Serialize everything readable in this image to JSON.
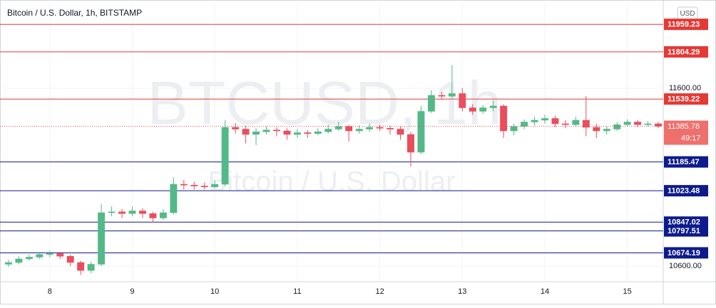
{
  "chart_data": {
    "type": "candlestick",
    "title": "Bitcoin / U.S. Dollar, 1h, BITSTAMP",
    "watermark": "BTCUSD, 1h",
    "watermark_subtitle": "Bitcoin / U.S. Dollar",
    "currency": "USD",
    "countdown": "49:17",
    "up_color": "#53b987",
    "down_color": "#eb4d5c",
    "x": [
      7.5,
      7.625,
      7.75,
      7.875,
      8.0,
      8.125,
      8.25,
      8.375,
      8.5,
      8.625,
      8.75,
      8.875,
      9.0,
      9.125,
      9.25,
      9.375,
      9.5,
      9.625,
      9.75,
      9.875,
      10.0,
      10.125,
      10.25,
      10.375,
      10.5,
      10.625,
      10.75,
      10.875,
      11.0,
      11.125,
      11.25,
      11.375,
      11.5,
      11.625,
      11.75,
      11.875,
      12.0,
      12.125,
      12.25,
      12.375,
      12.5,
      12.625,
      12.75,
      12.875,
      13.0,
      13.125,
      13.25,
      13.375,
      13.5,
      13.625,
      13.75,
      13.875,
      14.0,
      14.125,
      14.25,
      14.375,
      14.5,
      14.625,
      14.75,
      14.875,
      15.0,
      15.125,
      15.25,
      15.375
    ],
    "open": [
      10610,
      10620,
      10640,
      10650,
      10665,
      10670,
      10655,
      10620,
      10575,
      10610,
      10900,
      10905,
      10895,
      10910,
      10895,
      10870,
      10900,
      11060,
      11055,
      11050,
      11045,
      11060,
      11380,
      11370,
      11340,
      11355,
      11365,
      11360,
      11340,
      11350,
      11345,
      11355,
      11370,
      11385,
      11360,
      11370,
      11380,
      11375,
      11370,
      11340,
      11240,
      11470,
      11560,
      11555,
      11570,
      11490,
      11470,
      11490,
      11500,
      11360,
      11385,
      11410,
      11420,
      11430,
      11400,
      11395,
      11420,
      11380,
      11360,
      11370,
      11395,
      11410,
      11395,
      11400
    ],
    "high": [
      10635,
      10655,
      10665,
      10680,
      10685,
      10680,
      10665,
      10630,
      10625,
      10950,
      10935,
      10920,
      10935,
      10925,
      10905,
      10920,
      11100,
      11085,
      11075,
      11070,
      11080,
      11420,
      11405,
      11390,
      11375,
      11385,
      11380,
      11375,
      11370,
      11365,
      11375,
      11395,
      11410,
      11395,
      11390,
      11400,
      11395,
      11390,
      11385,
      11355,
      11500,
      11590,
      11580,
      11730,
      11600,
      11510,
      11505,
      11530,
      11510,
      11400,
      11425,
      11440,
      11450,
      11445,
      11420,
      11440,
      11555,
      11400,
      11385,
      11410,
      11425,
      11420,
      11415,
      11410
    ],
    "low": [
      10595,
      10610,
      10630,
      10640,
      10650,
      10640,
      10600,
      10550,
      10560,
      10600,
      10880,
      10870,
      10880,
      10870,
      10845,
      10860,
      10890,
      11030,
      11030,
      11030,
      11035,
      11050,
      11345,
      11290,
      11280,
      11340,
      11330,
      11310,
      11320,
      11320,
      11335,
      11345,
      11360,
      11300,
      11345,
      11355,
      11360,
      11340,
      11310,
      11160,
      11230,
      11460,
      11535,
      11545,
      11470,
      11450,
      11455,
      11470,
      11320,
      11335,
      11370,
      11390,
      11400,
      11380,
      11375,
      11385,
      11330,
      11320,
      11340,
      11360,
      11385,
      11380,
      11385,
      11375
    ],
    "close": [
      10620,
      10640,
      10650,
      10665,
      10670,
      10655,
      10620,
      10575,
      10610,
      10900,
      10905,
      10895,
      10910,
      10895,
      10870,
      10900,
      11060,
      11055,
      11050,
      11045,
      11060,
      11380,
      11370,
      11340,
      11355,
      11365,
      11360,
      11340,
      11350,
      11345,
      11355,
      11370,
      11385,
      11360,
      11370,
      11380,
      11375,
      11370,
      11340,
      11240,
      11470,
      11560,
      11555,
      11570,
      11490,
      11470,
      11490,
      11500,
      11360,
      11385,
      11410,
      11420,
      11430,
      11400,
      11395,
      11420,
      11380,
      11360,
      11370,
      11395,
      11410,
      11395,
      11400,
      11385.78
    ],
    "levels": [
      {
        "value": 11959.23,
        "color": "#e53935"
      },
      {
        "value": 11804.29,
        "color": "#e53935"
      },
      {
        "value": 11539.22,
        "color": "#e53935"
      },
      {
        "value": 11185.47,
        "color": "#0d1b8c"
      },
      {
        "value": 11023.48,
        "color": "#0d1b8c"
      },
      {
        "value": 10847.02,
        "color": "#0d1b8c"
      },
      {
        "value": 10797.51,
        "color": "#0d1b8c"
      },
      {
        "value": 10674.19,
        "color": "#0d1b8c"
      }
    ],
    "xlim": [
      7.44,
      15.435
    ],
    "xticks": [
      8,
      9,
      10,
      11,
      12,
      13,
      14,
      15
    ],
    "ylim": [
      10512,
      12076
    ],
    "yticks": [
      {
        "value": 11600,
        "label": "11600.00"
      },
      {
        "value": 10600,
        "label": "10600.00"
      }
    ],
    "grid": true
  }
}
